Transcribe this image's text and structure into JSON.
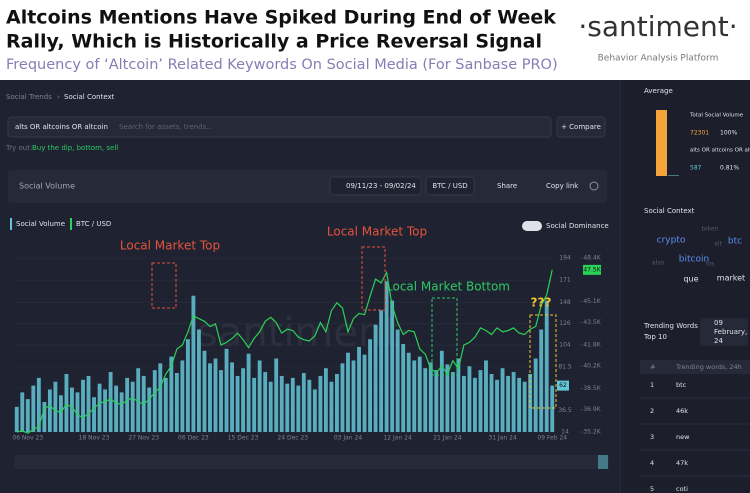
{
  "header": {
    "title_line1": "Altcoins Mentions Have Spiked During End of Week",
    "title_line2": "Rally, Which is Historically a Price Reversal Signal",
    "subtitle": "Frequency of ‘Altcoin’ Related Keywords On Social Media (For Sanbase PRO)",
    "logo": "·santiment·",
    "logo_tagline": "Behavior Analysis Platform"
  },
  "breadcrumb": [
    "Social Trends",
    "Social Context"
  ],
  "search": {
    "query": "alts OR altcoins OR altcoin",
    "placeholder": "Search for assets, trends...",
    "compare": "+ Compare",
    "try_label": "Try out:",
    "suggestions": "Buy the dip, bottom, sell"
  },
  "toolbar": {
    "title": "Social Volume",
    "date_range": "09/11/23 - 09/02/24",
    "pair": "BTC / USD",
    "share": "Share",
    "copy": "Copy link"
  },
  "chart_data": {
    "type": "combo",
    "toggle_label": "Social Dominance",
    "annotations": [
      {
        "text": "Local Market Top",
        "color": "#e5533f"
      },
      {
        "text": "Local Market Top",
        "color": "#e5533f"
      },
      {
        "text": "Local Market Bottom",
        "color": "#2ec866"
      },
      {
        "text": "???",
        "color": "#f2c230"
      }
    ],
    "categories": [
      null,
      null,
      "06 Nov 23",
      null,
      null,
      null,
      null,
      null,
      null,
      null,
      null,
      null,
      null,
      null,
      "18 Nov 23",
      null,
      null,
      null,
      null,
      null,
      null,
      null,
      null,
      "27 Nov 23",
      null,
      null,
      null,
      null,
      null,
      null,
      null,
      null,
      "06 Dec 23",
      null,
      null,
      null,
      null,
      null,
      null,
      null,
      null,
      "15 Dec 23",
      null,
      null,
      null,
      null,
      null,
      null,
      null,
      null,
      "24 Dec 23",
      null,
      null,
      null,
      null,
      null,
      null,
      null,
      null,
      null,
      "03 Jan 24",
      null,
      null,
      null,
      null,
      null,
      null,
      null,
      null,
      "12 Jan 24",
      null,
      null,
      null,
      null,
      null,
      null,
      null,
      null,
      "21 Jan 24",
      null,
      null,
      null,
      null,
      null,
      null,
      null,
      null,
      null,
      "31 Jan 24",
      null,
      null,
      null,
      null,
      null,
      null,
      null,
      null,
      "09 Feb 24"
    ],
    "series": [
      {
        "name": "Social Volume",
        "type": "bar",
        "color": "#63c5d8",
        "values": [
          40,
          55,
          48,
          62,
          70,
          45,
          58,
          66,
          52,
          74,
          60,
          55,
          68,
          72,
          50,
          64,
          58,
          76,
          62,
          55,
          70,
          66,
          80,
          72,
          60,
          78,
          85,
          70,
          92,
          75,
          88,
          110,
          155,
          120,
          98,
          85,
          90,
          78,
          100,
          86,
          72,
          80,
          95,
          70,
          88,
          76,
          66,
          90,
          72,
          64,
          70,
          62,
          75,
          68,
          58,
          72,
          80,
          66,
          74,
          85,
          96,
          88,
          102,
          94,
          110,
          125,
          140,
          170,
          150,
          120,
          105,
          96,
          88,
          92,
          80,
          86,
          78,
          98,
          84,
          76,
          90,
          72,
          82,
          70,
          78,
          88,
          74,
          68,
          80,
          72,
          76,
          70,
          66,
          74,
          90,
          120,
          150,
          62
        ]
      },
      {
        "name": "BTC / USD",
        "type": "line",
        "axis": "y2",
        "color": "#2bd158",
        "last_label": "47.5K",
        "values": [
          35200,
          35300,
          35100,
          35400,
          35600,
          37000,
          37200,
          36800,
          36700,
          37300,
          37100,
          36500,
          36300,
          36600,
          37000,
          37400,
          37500,
          37700,
          37400,
          37300,
          37600,
          37800,
          37500,
          37300,
          37700,
          38200,
          38600,
          39600,
          40200,
          41500,
          41800,
          42800,
          44000,
          43800,
          43600,
          43200,
          43400,
          41800,
          42000,
          42300,
          42700,
          42200,
          41600,
          42300,
          42800,
          43600,
          43900,
          43500,
          42700,
          43000,
          42900,
          42400,
          42200,
          42100,
          42500,
          43500,
          42800,
          44400,
          45000,
          44600,
          42800,
          43800,
          44200,
          44100,
          45500,
          46800,
          46500,
          47300,
          44800,
          43500,
          42600,
          42900,
          42800,
          41500,
          41100,
          40000,
          39700,
          40200,
          39600,
          40600,
          40000,
          41800,
          42000,
          42400,
          43100,
          42900,
          42600,
          43100,
          42800,
          42900,
          43100,
          42700,
          42600,
          43000,
          43200,
          44800,
          45600,
          47500
        ]
      }
    ],
    "ylim": [
      14,
      194
    ],
    "yticks": [
      194,
      171,
      148,
      126,
      104,
      81.5,
      59,
      36.5,
      14
    ],
    "y2lim": [
      35200,
      48400
    ],
    "y2ticks": [
      {
        "value": 48400,
        "label": "48.4K"
      },
      {
        "value": 45100,
        "label": "45.1K"
      },
      {
        "value": 43500,
        "label": "43.5K"
      },
      {
        "value": 41800,
        "label": "41.8K"
      },
      {
        "value": 40200,
        "label": "40.2K"
      },
      {
        "value": 38500,
        "label": "38.5K"
      },
      {
        "value": 36900,
        "label": "36.9K"
      },
      {
        "value": 35200,
        "label": "35.2K"
      }
    ]
  },
  "sidebar": {
    "average_title": "Average",
    "average": [
      {
        "name": "Total Social Volume",
        "value": 72301,
        "share": 100,
        "share_label": "100%",
        "color": "#f5a43c"
      },
      {
        "name": "alts OR altcoins OR altcoin",
        "value": 587,
        "share": 0.81,
        "share_label": "0.81%",
        "color": "#63c5d8"
      }
    ],
    "context_title": "Social Context",
    "context_words": [
      "token",
      "crypto",
      "alt",
      "btc",
      "bitcoin",
      "also",
      "los",
      "que",
      "market"
    ],
    "trending_title_1": "Trending Words",
    "trending_title_2": "Top 10",
    "trending_date_1": "09",
    "trending_date_2": "February,",
    "trending_date_3": "24",
    "trending_header": [
      "#",
      "Trending words, 24h"
    ],
    "trending_rows": [
      [
        "1",
        "btc"
      ],
      [
        "2",
        "46k"
      ],
      [
        "3",
        "new"
      ],
      [
        "4",
        "47k"
      ],
      [
        "5",
        "coti"
      ]
    ]
  }
}
